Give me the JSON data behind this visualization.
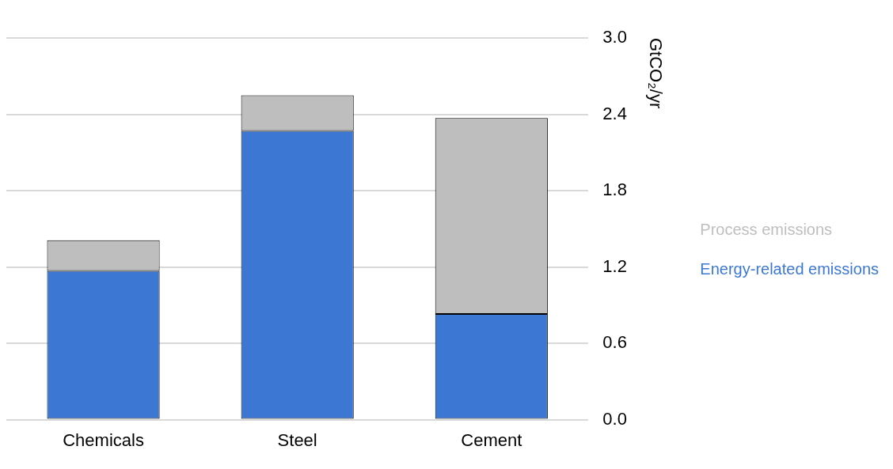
{
  "chart_data": {
    "type": "bar",
    "stacked": true,
    "ylabel": "GtCO₂/yr",
    "categories": [
      "Chemicals",
      "Steel",
      "Cement"
    ],
    "series": [
      {
        "name": "Energy-related emissions",
        "color": "#3c78d3",
        "values": [
          1.17,
          2.27,
          0.83
        ]
      },
      {
        "name": "Process emissions",
        "color": "#bebebe",
        "values": [
          0.24,
          0.28,
          1.54
        ]
      }
    ],
    "ylim": [
      0,
      3.0
    ],
    "yticks": [
      {
        "value": 0,
        "label": "0.0"
      },
      0.6,
      1.2,
      1.8,
      2.4,
      {
        "value": 3,
        "label": "3.0"
      }
    ],
    "grid": "y",
    "legend": "right"
  }
}
